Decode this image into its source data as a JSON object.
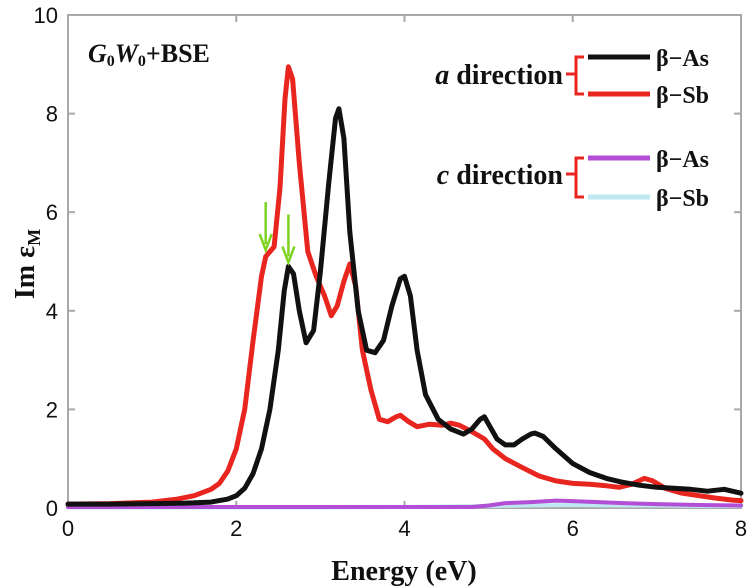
{
  "chart_data": {
    "type": "line",
    "annotation": "G0W0+BSE",
    "annotation_parts": {
      "g": "G",
      "g_sub": "0",
      "w": "W",
      "w_sub": "0",
      "rest": "+BSE"
    },
    "xlabel": "Energy (eV)",
    "ylabel": "Im ε",
    "ylabel_sub": "M",
    "xlim": [
      0,
      8
    ],
    "ylim": [
      0,
      10
    ],
    "xticks": [
      "0",
      "2",
      "4",
      "6",
      "8"
    ],
    "yticks": [
      "0",
      "2",
      "4",
      "6",
      "8",
      "10"
    ],
    "legend_groups": [
      {
        "direction": "a",
        "label": "direction",
        "entries": [
          "β−As",
          "β−Sb"
        ]
      },
      {
        "direction": "c",
        "label": "direction",
        "entries": [
          "β−As",
          "β−Sb"
        ]
      }
    ],
    "series": [
      {
        "name": "β−As",
        "group": "a direction",
        "color": "#111111",
        "points": [
          [
            0,
            0.08
          ],
          [
            0.5,
            0.08
          ],
          [
            1.0,
            0.09
          ],
          [
            1.4,
            0.1
          ],
          [
            1.7,
            0.12
          ],
          [
            1.9,
            0.18
          ],
          [
            2.0,
            0.25
          ],
          [
            2.1,
            0.4
          ],
          [
            2.2,
            0.7
          ],
          [
            2.3,
            1.2
          ],
          [
            2.4,
            2.0
          ],
          [
            2.5,
            3.2
          ],
          [
            2.57,
            4.4
          ],
          [
            2.62,
            4.9
          ],
          [
            2.68,
            4.75
          ],
          [
            2.75,
            4.0
          ],
          [
            2.83,
            3.35
          ],
          [
            2.92,
            3.6
          ],
          [
            3.0,
            4.8
          ],
          [
            3.1,
            6.6
          ],
          [
            3.18,
            7.9
          ],
          [
            3.22,
            8.1
          ],
          [
            3.28,
            7.5
          ],
          [
            3.35,
            5.6
          ],
          [
            3.45,
            4.0
          ],
          [
            3.55,
            3.2
          ],
          [
            3.65,
            3.15
          ],
          [
            3.75,
            3.4
          ],
          [
            3.85,
            4.1
          ],
          [
            3.95,
            4.65
          ],
          [
            4.0,
            4.7
          ],
          [
            4.07,
            4.3
          ],
          [
            4.15,
            3.2
          ],
          [
            4.25,
            2.3
          ],
          [
            4.4,
            1.8
          ],
          [
            4.55,
            1.6
          ],
          [
            4.7,
            1.5
          ],
          [
            4.8,
            1.6
          ],
          [
            4.9,
            1.8
          ],
          [
            4.95,
            1.85
          ],
          [
            5.0,
            1.7
          ],
          [
            5.1,
            1.4
          ],
          [
            5.2,
            1.28
          ],
          [
            5.3,
            1.28
          ],
          [
            5.4,
            1.4
          ],
          [
            5.5,
            1.5
          ],
          [
            5.55,
            1.52
          ],
          [
            5.65,
            1.45
          ],
          [
            5.8,
            1.2
          ],
          [
            6.0,
            0.9
          ],
          [
            6.2,
            0.72
          ],
          [
            6.4,
            0.6
          ],
          [
            6.6,
            0.52
          ],
          [
            6.8,
            0.46
          ],
          [
            7.0,
            0.42
          ],
          [
            7.2,
            0.4
          ],
          [
            7.4,
            0.38
          ],
          [
            7.6,
            0.34
          ],
          [
            7.8,
            0.38
          ],
          [
            8.0,
            0.3
          ]
        ]
      },
      {
        "name": "β−Sb",
        "group": "a direction",
        "color": "#e8261f",
        "points": [
          [
            0,
            0.08
          ],
          [
            0.5,
            0.09
          ],
          [
            1.0,
            0.12
          ],
          [
            1.3,
            0.18
          ],
          [
            1.5,
            0.25
          ],
          [
            1.7,
            0.38
          ],
          [
            1.8,
            0.5
          ],
          [
            1.9,
            0.75
          ],
          [
            2.0,
            1.2
          ],
          [
            2.1,
            2.0
          ],
          [
            2.2,
            3.4
          ],
          [
            2.3,
            4.7
          ],
          [
            2.35,
            5.1
          ],
          [
            2.45,
            5.3
          ],
          [
            2.52,
            6.5
          ],
          [
            2.58,
            8.3
          ],
          [
            2.62,
            8.95
          ],
          [
            2.67,
            8.7
          ],
          [
            2.75,
            7.0
          ],
          [
            2.85,
            5.2
          ],
          [
            2.95,
            4.7
          ],
          [
            3.05,
            4.3
          ],
          [
            3.13,
            3.9
          ],
          [
            3.2,
            4.1
          ],
          [
            3.28,
            4.6
          ],
          [
            3.35,
            4.95
          ],
          [
            3.42,
            4.5
          ],
          [
            3.5,
            3.2
          ],
          [
            3.6,
            2.4
          ],
          [
            3.7,
            1.8
          ],
          [
            3.8,
            1.75
          ],
          [
            3.9,
            1.85
          ],
          [
            3.95,
            1.88
          ],
          [
            4.05,
            1.75
          ],
          [
            4.15,
            1.65
          ],
          [
            4.3,
            1.7
          ],
          [
            4.45,
            1.68
          ],
          [
            4.55,
            1.72
          ],
          [
            4.65,
            1.68
          ],
          [
            4.8,
            1.55
          ],
          [
            4.95,
            1.4
          ],
          [
            5.05,
            1.2
          ],
          [
            5.2,
            1.0
          ],
          [
            5.4,
            0.82
          ],
          [
            5.6,
            0.65
          ],
          [
            5.8,
            0.55
          ],
          [
            6.0,
            0.5
          ],
          [
            6.2,
            0.48
          ],
          [
            6.4,
            0.45
          ],
          [
            6.55,
            0.42
          ],
          [
            6.7,
            0.48
          ],
          [
            6.85,
            0.6
          ],
          [
            6.95,
            0.55
          ],
          [
            7.1,
            0.4
          ],
          [
            7.3,
            0.3
          ],
          [
            7.5,
            0.25
          ],
          [
            7.7,
            0.2
          ],
          [
            7.9,
            0.16
          ],
          [
            8.0,
            0.15
          ]
        ]
      },
      {
        "name": "β−As",
        "group": "c direction",
        "color": "#b24fd6",
        "points": [
          [
            0,
            0.02
          ],
          [
            4.8,
            0.02
          ],
          [
            5.0,
            0.05
          ],
          [
            5.2,
            0.1
          ],
          [
            5.5,
            0.12
          ],
          [
            5.8,
            0.15
          ],
          [
            6.0,
            0.14
          ],
          [
            6.3,
            0.12
          ],
          [
            6.6,
            0.1
          ],
          [
            7.0,
            0.08
          ],
          [
            7.5,
            0.06
          ],
          [
            8.0,
            0.05
          ]
        ]
      },
      {
        "name": "β−Sb",
        "group": "c direction",
        "color": "#bfe9f2",
        "points": [
          [
            0,
            0.01
          ],
          [
            3.0,
            0.01
          ],
          [
            4.0,
            0.02
          ],
          [
            4.5,
            0.03
          ],
          [
            5.0,
            0.04
          ],
          [
            5.5,
            0.05
          ],
          [
            6.0,
            0.06
          ],
          [
            6.5,
            0.05
          ],
          [
            7.0,
            0.05
          ],
          [
            7.5,
            0.04
          ],
          [
            8.0,
            0.04
          ]
        ]
      }
    ],
    "markers": [
      {
        "type": "arrow",
        "color": "#7ed321",
        "x": 2.35,
        "y": 5.15
      },
      {
        "type": "arrow",
        "color": "#7ed321",
        "x": 2.62,
        "y": 4.9
      }
    ]
  }
}
